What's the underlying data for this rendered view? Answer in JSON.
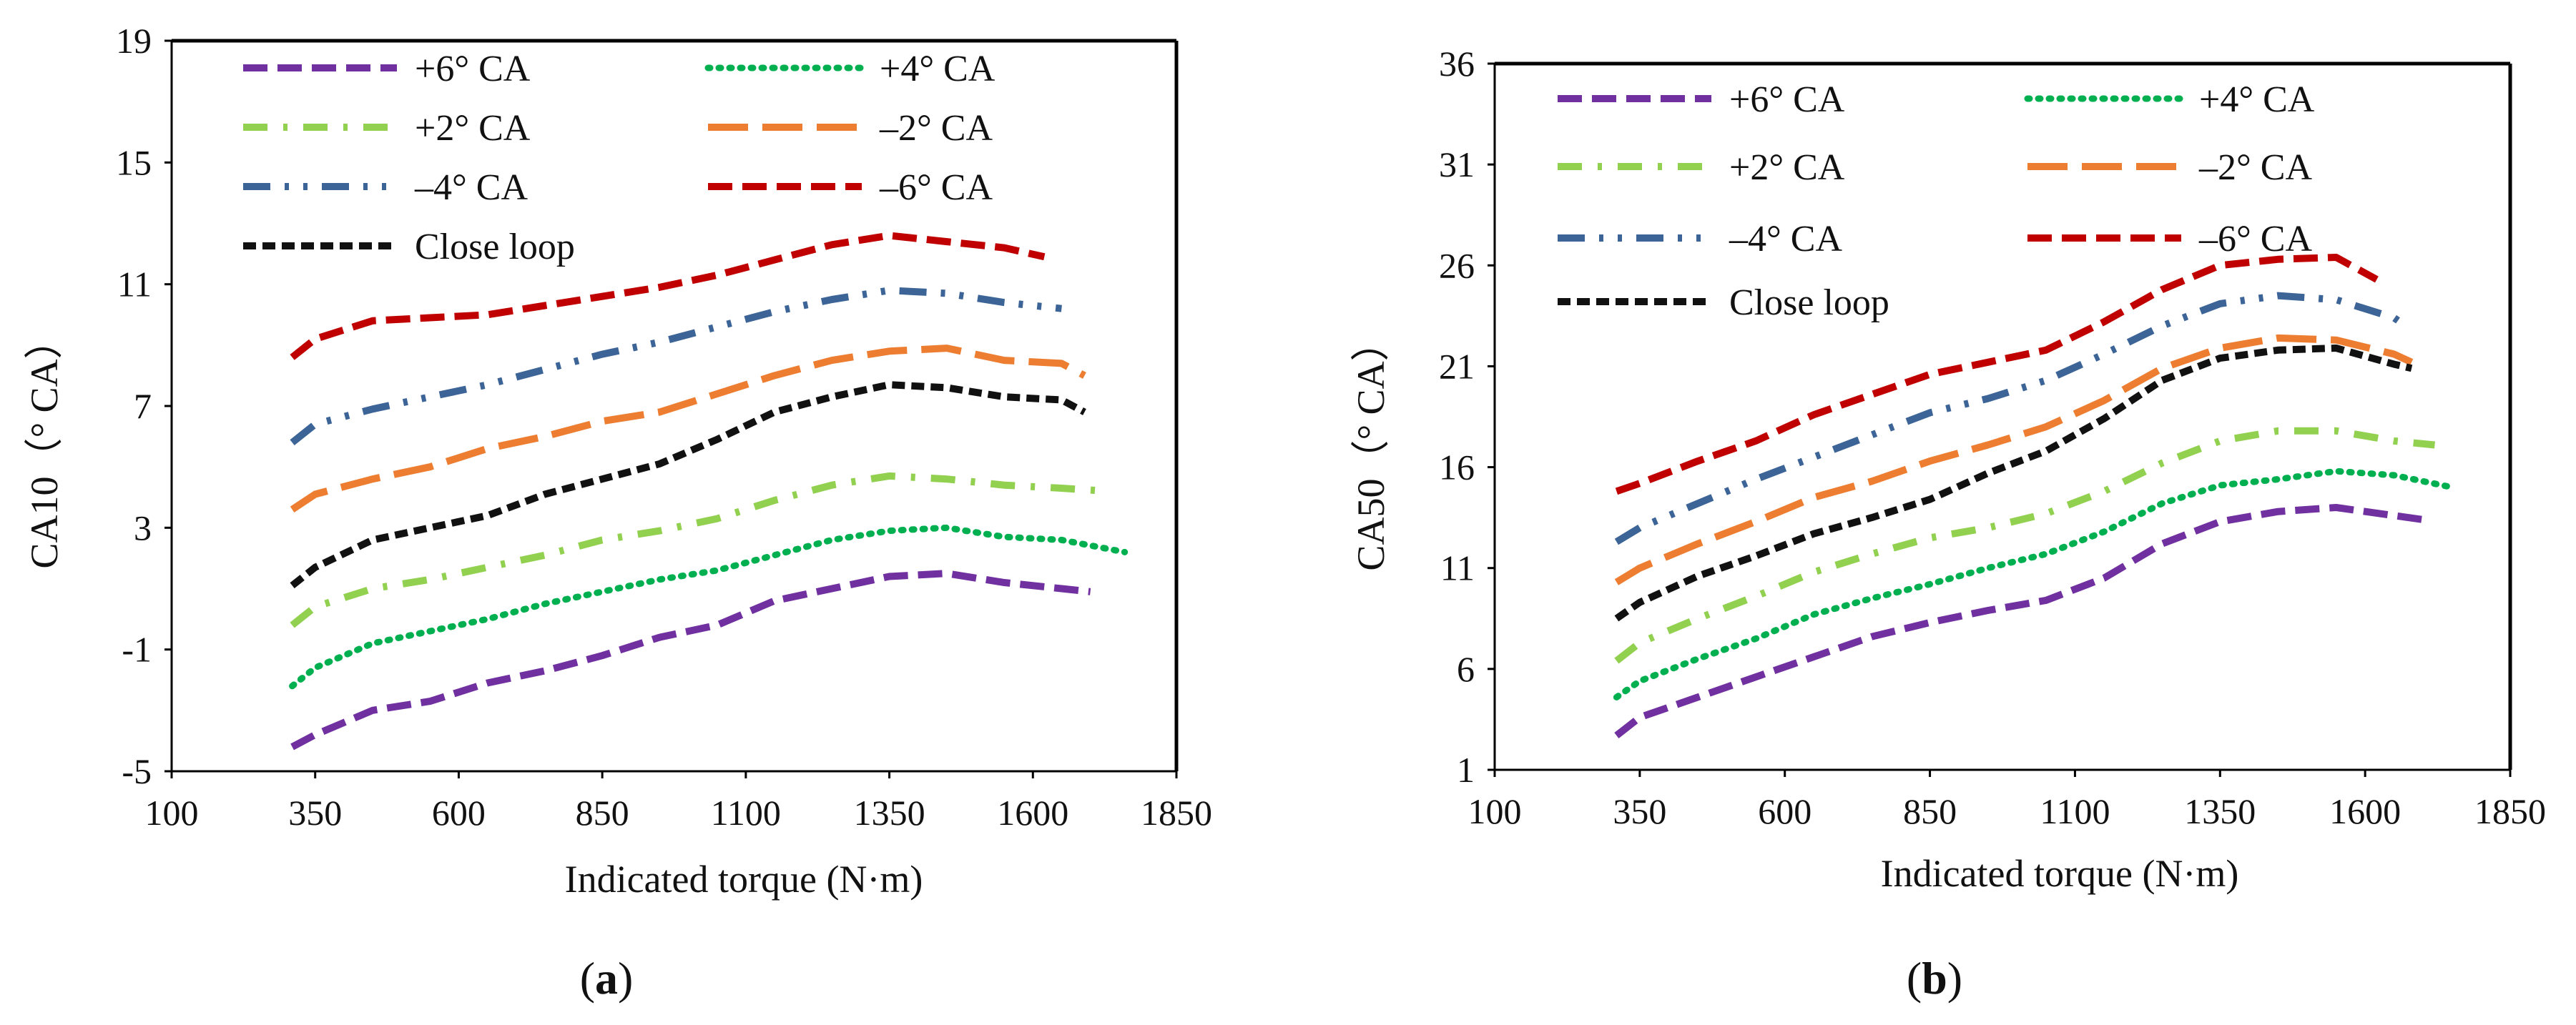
{
  "panels": [
    {
      "label_open": "(",
      "label_letter": "a",
      "label_close": ")"
    },
    {
      "label_open": "(",
      "label_letter": "b",
      "label_close": ")"
    }
  ],
  "chart_data": [
    {
      "type": "line",
      "title": "",
      "xlabel": "Indicated torque (N·m)",
      "ylabel": "CA10（° CA）",
      "xlim": [
        100,
        1850
      ],
      "ylim": [
        -5,
        19
      ],
      "xticks": [
        100,
        350,
        600,
        850,
        1100,
        1350,
        1600,
        1850
      ],
      "yticks": [
        -5,
        -1,
        3,
        7,
        11,
        15,
        19
      ],
      "series": [
        {
          "name": "+6° CA",
          "color": "#7030a0",
          "dash": "dash",
          "x": [
            310,
            350,
            450,
            550,
            650,
            750,
            850,
            950,
            1050,
            1150,
            1250,
            1350,
            1450,
            1550,
            1650,
            1700
          ],
          "y": [
            -4.2,
            -3.8,
            -3.0,
            -2.7,
            -2.1,
            -1.7,
            -1.2,
            -0.6,
            -0.2,
            0.6,
            1.0,
            1.4,
            1.5,
            1.2,
            1.0,
            0.9
          ]
        },
        {
          "name": "+4° CA",
          "color": "#00b050",
          "dash": "dot",
          "x": [
            310,
            350,
            450,
            550,
            650,
            750,
            850,
            950,
            1050,
            1150,
            1250,
            1350,
            1450,
            1550,
            1650,
            1760
          ],
          "y": [
            -2.2,
            -1.6,
            -0.8,
            -0.4,
            0.0,
            0.5,
            0.9,
            1.3,
            1.6,
            2.1,
            2.6,
            2.9,
            3.0,
            2.7,
            2.6,
            2.2
          ]
        },
        {
          "name": "+2° CA",
          "color": "#92d050",
          "dash": "dashdot",
          "x": [
            310,
            350,
            450,
            550,
            650,
            750,
            850,
            950,
            1050,
            1150,
            1250,
            1350,
            1450,
            1550,
            1650,
            1730
          ],
          "y": [
            -0.2,
            0.4,
            1.0,
            1.3,
            1.7,
            2.1,
            2.6,
            2.9,
            3.3,
            3.9,
            4.4,
            4.7,
            4.6,
            4.4,
            4.3,
            4.2
          ]
        },
        {
          "name": "–2° CA",
          "color": "#ed7d31",
          "dash": "longdash",
          "x": [
            310,
            350,
            450,
            550,
            650,
            750,
            850,
            950,
            1050,
            1150,
            1250,
            1350,
            1450,
            1550,
            1650,
            1690
          ],
          "y": [
            3.6,
            4.1,
            4.6,
            5.0,
            5.6,
            6.0,
            6.5,
            6.8,
            7.4,
            8.0,
            8.5,
            8.8,
            8.9,
            8.5,
            8.4,
            8.0
          ]
        },
        {
          "name": "–4° CA",
          "color": "#3c6496",
          "dash": "dashdotdot",
          "x": [
            310,
            350,
            450,
            550,
            650,
            750,
            850,
            950,
            1050,
            1150,
            1250,
            1350,
            1450,
            1550,
            1650
          ],
          "y": [
            5.8,
            6.4,
            6.9,
            7.3,
            7.7,
            8.2,
            8.7,
            9.1,
            9.6,
            10.1,
            10.5,
            10.8,
            10.7,
            10.4,
            10.2
          ]
        },
        {
          "name": "–6° CA",
          "color": "#c00000",
          "dash": "dash",
          "x": [
            310,
            350,
            450,
            550,
            650,
            750,
            850,
            950,
            1050,
            1150,
            1250,
            1350,
            1450,
            1550,
            1620
          ],
          "y": [
            8.6,
            9.2,
            9.8,
            9.9,
            10.0,
            10.3,
            10.6,
            10.9,
            11.3,
            11.8,
            12.3,
            12.6,
            12.4,
            12.2,
            11.9
          ]
        },
        {
          "name": "Close loop",
          "color": "#111111",
          "dash": "shortdash",
          "x": [
            310,
            350,
            450,
            550,
            650,
            750,
            850,
            950,
            1050,
            1150,
            1250,
            1350,
            1450,
            1550,
            1650,
            1690
          ],
          "y": [
            1.1,
            1.7,
            2.6,
            3.0,
            3.4,
            4.1,
            4.6,
            5.1,
            5.9,
            6.8,
            7.3,
            7.7,
            7.6,
            7.3,
            7.2,
            6.8
          ]
        }
      ]
    },
    {
      "type": "line",
      "title": "",
      "xlabel": "Indicated torque (N·m)",
      "ylabel": "CA50（° CA）",
      "xlim": [
        100,
        1850
      ],
      "ylim": [
        1,
        36
      ],
      "xticks": [
        100,
        350,
        600,
        850,
        1100,
        1350,
        1600,
        1850
      ],
      "yticks": [
        1,
        6,
        11,
        16,
        21,
        26,
        31,
        36
      ],
      "series": [
        {
          "name": "+6° CA",
          "color": "#7030a0",
          "dash": "dash",
          "x": [
            310,
            350,
            450,
            550,
            650,
            750,
            850,
            950,
            1050,
            1150,
            1250,
            1350,
            1450,
            1550,
            1650,
            1700
          ],
          "y": [
            2.7,
            3.6,
            4.6,
            5.6,
            6.6,
            7.6,
            8.3,
            8.9,
            9.4,
            10.5,
            12.2,
            13.3,
            13.8,
            14.0,
            13.6,
            13.4
          ]
        },
        {
          "name": "+4° CA",
          "color": "#00b050",
          "dash": "dot",
          "x": [
            310,
            350,
            450,
            550,
            650,
            750,
            850,
            950,
            1050,
            1150,
            1250,
            1350,
            1450,
            1550,
            1650,
            1750
          ],
          "y": [
            4.6,
            5.4,
            6.5,
            7.5,
            8.7,
            9.5,
            10.2,
            11.0,
            11.7,
            12.8,
            14.2,
            15.1,
            15.4,
            15.8,
            15.6,
            15.0
          ]
        },
        {
          "name": "+2° CA",
          "color": "#92d050",
          "dash": "dashdot",
          "x": [
            310,
            350,
            450,
            550,
            650,
            750,
            850,
            950,
            1050,
            1150,
            1250,
            1350,
            1450,
            1550,
            1650,
            1720
          ],
          "y": [
            6.4,
            7.3,
            8.5,
            9.6,
            10.8,
            11.7,
            12.5,
            13.0,
            13.7,
            14.8,
            16.2,
            17.3,
            17.8,
            17.8,
            17.3,
            17.1
          ]
        },
        {
          "name": "–2° CA",
          "color": "#ed7d31",
          "dash": "longdash",
          "x": [
            310,
            350,
            450,
            550,
            650,
            750,
            850,
            950,
            1050,
            1150,
            1250,
            1350,
            1450,
            1550,
            1650,
            1680
          ],
          "y": [
            10.3,
            11.0,
            12.2,
            13.3,
            14.5,
            15.3,
            16.3,
            17.1,
            18.0,
            19.3,
            20.9,
            21.9,
            22.4,
            22.3,
            21.6,
            21.2
          ]
        },
        {
          "name": "–4° CA",
          "color": "#3c6496",
          "dash": "dashdotdot",
          "x": [
            310,
            350,
            450,
            550,
            650,
            750,
            850,
            950,
            1050,
            1150,
            1250,
            1350,
            1450,
            1550,
            1650,
            1670
          ],
          "y": [
            12.3,
            13.0,
            14.2,
            15.4,
            16.5,
            17.6,
            18.7,
            19.4,
            20.3,
            21.6,
            23.0,
            24.1,
            24.5,
            24.3,
            23.4,
            23.0
          ]
        },
        {
          "name": "–6° CA",
          "color": "#c00000",
          "dash": "dash",
          "x": [
            310,
            350,
            450,
            550,
            650,
            750,
            850,
            950,
            1050,
            1150,
            1250,
            1350,
            1450,
            1550,
            1620
          ],
          "y": [
            14.8,
            15.2,
            16.3,
            17.3,
            18.6,
            19.6,
            20.6,
            21.2,
            21.8,
            23.2,
            24.8,
            26.0,
            26.3,
            26.4,
            25.3
          ]
        },
        {
          "name": "Close loop",
          "color": "#111111",
          "dash": "shortdash",
          "x": [
            310,
            350,
            450,
            550,
            650,
            750,
            850,
            950,
            1050,
            1150,
            1250,
            1350,
            1450,
            1550,
            1650,
            1680
          ],
          "y": [
            8.5,
            9.3,
            10.6,
            11.6,
            12.7,
            13.5,
            14.4,
            15.7,
            16.8,
            18.4,
            20.3,
            21.4,
            21.8,
            21.9,
            21.1,
            20.9
          ]
        }
      ]
    }
  ]
}
